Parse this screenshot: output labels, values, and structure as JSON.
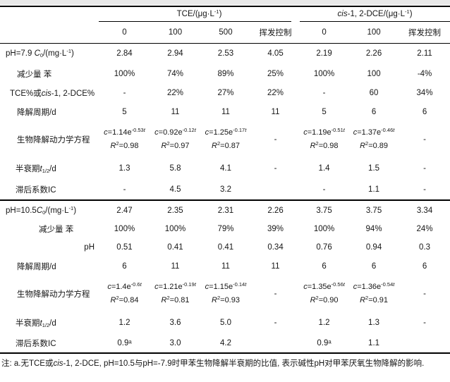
{
  "columns": [
    "0",
    "100",
    "500",
    "挥发控制",
    "0",
    "100",
    "挥发控制"
  ],
  "groups": {
    "tce": [
      {
        "t": "TCE/(μg·L"
      },
      {
        "t": "-1",
        "s": "sup"
      },
      {
        "t": ")"
      }
    ],
    "dce": [
      {
        "t": "cis",
        "s": "i"
      },
      {
        "t": "-1, 2-DCE/(μg·L"
      },
      {
        "t": "-1",
        "s": "sup"
      },
      {
        "t": ")"
      }
    ]
  },
  "sections": [
    {
      "rows": [
        {
          "label": [
            {
              "t": "pH=7.9 "
            },
            {
              "t": "C",
              "s": "i"
            },
            {
              "t": "0",
              "s": "sub"
            },
            {
              "t": "/(mg·L"
            },
            {
              "t": "-1",
              "s": "sup"
            },
            {
              "t": ")"
            }
          ],
          "values": [
            "2.84",
            "2.94",
            "2.53",
            "4.05",
            "2.19",
            "2.26",
            "2.11"
          ]
        },
        {
          "label": [
            {
              "t": "减少量 苯"
            }
          ],
          "values": [
            "100%",
            "74%",
            "89%",
            "25%",
            "100%",
            "100",
            "-4%"
          ]
        },
        {
          "label": [
            {
              "t": "TCE%或"
            },
            {
              "t": "cis",
              "s": "i"
            },
            {
              "t": "-1, 2-DCE%"
            }
          ],
          "values": [
            "-",
            "22%",
            "27%",
            "22%",
            "-",
            "60",
            "34%"
          ]
        },
        {
          "label": [
            {
              "t": "降解周期/d"
            }
          ],
          "values": [
            "5",
            "11",
            "11",
            "11",
            "5",
            "6",
            "6"
          ]
        },
        {
          "label": [
            {
              "t": "生物降解动力学方程"
            }
          ],
          "eqs": [
            {
              "line1": [
                {
                  "t": "c",
                  "s": "i"
                },
                {
                  "t": "=1.14e"
                },
                {
                  "t": "-0.53",
                  "s": "sup"
                },
                {
                  "t": "t",
                  "s": "supi"
                }
              ],
              "line2": [
                {
                  "t": "R",
                  "s": "i"
                },
                {
                  "t": "2",
                  "s": "sup"
                },
                {
                  "t": "=0.98"
                }
              ]
            },
            {
              "line1": [
                {
                  "t": "c",
                  "s": "i"
                },
                {
                  "t": "=0.92e"
                },
                {
                  "t": "-0.12",
                  "s": "sup"
                },
                {
                  "t": "t",
                  "s": "supi"
                }
              ],
              "line2": [
                {
                  "t": "R",
                  "s": "i"
                },
                {
                  "t": "2",
                  "s": "sup"
                },
                {
                  "t": "=0.97"
                }
              ]
            },
            {
              "line1": [
                {
                  "t": "c",
                  "s": "i"
                },
                {
                  "t": "=1.25e"
                },
                {
                  "t": "-0.17",
                  "s": "sup"
                },
                {
                  "t": "t",
                  "s": "supi"
                }
              ],
              "line2": [
                {
                  "t": "R",
                  "s": "i"
                },
                {
                  "t": "2",
                  "s": "sup"
                },
                {
                  "t": "=0.87"
                }
              ]
            },
            {
              "dash": "-"
            },
            {
              "line1": [
                {
                  "t": "c",
                  "s": "i"
                },
                {
                  "t": "=1.19e"
                },
                {
                  "t": "-0.51",
                  "s": "sup"
                },
                {
                  "t": "t",
                  "s": "supi"
                }
              ],
              "line2": [
                {
                  "t": "R",
                  "s": "i"
                },
                {
                  "t": "2",
                  "s": "sup"
                },
                {
                  "t": "=0.98"
                }
              ]
            },
            {
              "line1": [
                {
                  "t": "c",
                  "s": "i"
                },
                {
                  "t": "=1.37e"
                },
                {
                  "t": "-0.46",
                  "s": "sup"
                },
                {
                  "t": "t",
                  "s": "supi"
                }
              ],
              "line2": [
                {
                  "t": "R",
                  "s": "i"
                },
                {
                  "t": "2",
                  "s": "sup"
                },
                {
                  "t": "=0.89"
                }
              ]
            },
            {
              "dash": "-"
            }
          ]
        },
        {
          "label": [
            {
              "t": "半衰期"
            },
            {
              "t": "t",
              "s": "i"
            },
            {
              "t": "1/2",
              "s": "sub"
            },
            {
              "t": "/d"
            }
          ],
          "values": [
            "1.3",
            "5.8",
            "4.1",
            "-",
            "1.4",
            "1.5",
            "-"
          ]
        },
        {
          "label": [
            {
              "t": "滞后系数IC"
            }
          ],
          "values": [
            "-",
            "4.5",
            "3.2",
            "",
            "-",
            "1.1",
            "-"
          ]
        }
      ]
    },
    {
      "rows": [
        {
          "label": [
            {
              "t": "pH=10.5"
            },
            {
              "t": "C",
              "s": "i"
            },
            {
              "t": "0",
              "s": "sub"
            },
            {
              "t": "/(mg·L"
            },
            {
              "t": "-1",
              "s": "sup"
            },
            {
              "t": ")"
            }
          ],
          "values": [
            "2.47",
            "2.35",
            "2.31",
            "2.26",
            "3.75",
            "3.75",
            "3.34"
          ]
        },
        {
          "label": [
            {
              "t": "减少量 苯"
            }
          ],
          "values": [
            "100%",
            "100%",
            "79%",
            "39%",
            "100%",
            "94%",
            "24%"
          ]
        },
        {
          "label": [
            {
              "t": "pH"
            }
          ],
          "values": [
            "0.51",
            "0.41",
            "0.41",
            "0.34",
            "0.76",
            "0.94",
            "0.3"
          ]
        },
        {
          "label": [
            {
              "t": "降解周期/d"
            }
          ],
          "values": [
            "6",
            "11",
            "11",
            "11",
            "6",
            "6",
            "6"
          ]
        },
        {
          "label": [
            {
              "t": "生物降解动力学方程"
            }
          ],
          "eqs": [
            {
              "line1": [
                {
                  "t": "c",
                  "s": "i"
                },
                {
                  "t": "=1.4e"
                },
                {
                  "t": "-0.6",
                  "s": "sup"
                },
                {
                  "t": "t",
                  "s": "supi"
                }
              ],
              "line2": [
                {
                  "t": "R",
                  "s": "i"
                },
                {
                  "t": "2",
                  "s": "sup"
                },
                {
                  "t": "=0.84"
                }
              ]
            },
            {
              "line1": [
                {
                  "t": "c",
                  "s": "i"
                },
                {
                  "t": "=1.21e"
                },
                {
                  "t": "-0.19",
                  "s": "sup"
                },
                {
                  "t": "t",
                  "s": "supi"
                }
              ],
              "line2": [
                {
                  "t": "R",
                  "s": "i"
                },
                {
                  "t": "2",
                  "s": "sup"
                },
                {
                  "t": "=0.81"
                }
              ]
            },
            {
              "line1": [
                {
                  "t": "c",
                  "s": "i"
                },
                {
                  "t": "=1.15e"
                },
                {
                  "t": "-0.14",
                  "s": "sup"
                },
                {
                  "t": "t",
                  "s": "supi"
                }
              ],
              "line2": [
                {
                  "t": "R",
                  "s": "i"
                },
                {
                  "t": "2",
                  "s": "sup"
                },
                {
                  "t": "=0.93"
                }
              ]
            },
            {
              "dash": "-"
            },
            {
              "line1": [
                {
                  "t": "c",
                  "s": "i"
                },
                {
                  "t": "=1.35e"
                },
                {
                  "t": "-0.56",
                  "s": "sup"
                },
                {
                  "t": "t",
                  "s": "supi"
                }
              ],
              "line2": [
                {
                  "t": "R",
                  "s": "i"
                },
                {
                  "t": "2",
                  "s": "sup"
                },
                {
                  "t": "=0.90"
                }
              ]
            },
            {
              "line1": [
                {
                  "t": "c",
                  "s": "i"
                },
                {
                  "t": "=1.36e"
                },
                {
                  "t": "-0.54",
                  "s": "sup"
                },
                {
                  "t": "t",
                  "s": "supi"
                }
              ],
              "line2": [
                {
                  "t": "R",
                  "s": "i"
                },
                {
                  "t": "2",
                  "s": "sup"
                },
                {
                  "t": "=0.91"
                }
              ]
            },
            {
              "dash": "-"
            }
          ]
        },
        {
          "label": [
            {
              "t": "半衰期"
            },
            {
              "t": "t",
              "s": "i"
            },
            {
              "t": "1/2",
              "s": "sub"
            },
            {
              "t": "/d"
            }
          ],
          "values": [
            "1.2",
            "3.6",
            "5.0",
            "-",
            "1.2",
            "1.3",
            "-"
          ]
        },
        {
          "label": [
            {
              "t": "滞后系数IC"
            }
          ],
          "values": [
            "0.9ᵃ",
            "3.0",
            "4.2",
            "",
            "0.9ᵃ",
            "1.1",
            ""
          ]
        }
      ]
    }
  ],
  "footnote": [
    {
      "t": "注: a.无TCE或"
    },
    {
      "t": "cis",
      "s": "i"
    },
    {
      "t": "-1, 2-DCE, pH=10.5与pH=-7.9时甲苯生物降解半衰期的比值, 表示碱性pH对甲苯厌氧生物降解的影响."
    }
  ]
}
